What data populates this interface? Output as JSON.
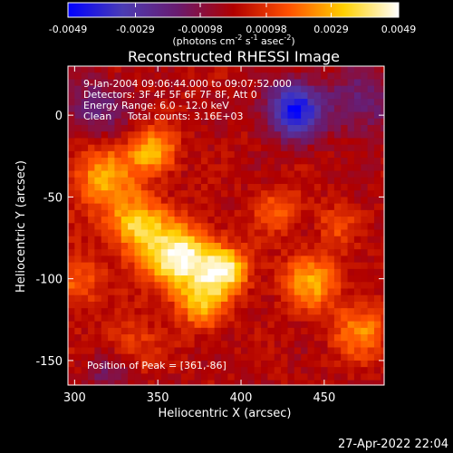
{
  "colorbar": {
    "ticks": [
      "-0.0049",
      "-0.0029",
      "-0.00098",
      "0.00098",
      "0.0029",
      "0.0049"
    ],
    "tick_values": [
      -0.0049,
      -0.0029,
      -0.00098,
      0.00098,
      0.0029,
      0.0049
    ],
    "range": [
      -0.0049,
      0.0049
    ],
    "unit": "(photons cm",
    "unit_sup1": "-2",
    "unit_mid": " s",
    "unit_sup2": "-1",
    "unit_tail": " asec",
    "unit_sup3": "-2",
    "unit_end": ")",
    "colors": [
      "#0000ff",
      "#4b3cb4",
      "#6a1b6e",
      "#b00000",
      "#ff5000",
      "#ffd000",
      "#ffffff"
    ]
  },
  "title": "Reconstructed RHESSI Image",
  "info": {
    "line1": "9-Jan-2004 09:06:44.000 to 09:07:52.000",
    "line2": "Detectors: 3F 4F 5F 6F 7F 8F, Att 0",
    "line3": "Energy Range: 6.0 - 12.0 keV",
    "line4": "Clean     Total counts: 3.16E+03"
  },
  "peak": "Position of Peak = [361,-86]",
  "axes": {
    "xlabel": "Heliocentric X (arcsec)",
    "ylabel": "Heliocentric Y (arcsec)",
    "xticks": [
      "300",
      "350",
      "400",
      "450"
    ],
    "xtick_values": [
      300,
      350,
      400,
      450
    ],
    "yticks": [
      "0",
      "-50",
      "-100",
      "-150"
    ],
    "ytick_values": [
      0,
      -50,
      -100,
      -150
    ],
    "xrange": [
      296,
      486
    ],
    "yrange": [
      -165,
      30
    ]
  },
  "image_sources": [
    {
      "x": 361,
      "y": -86,
      "amp": 1.0,
      "s": 14
    },
    {
      "x": 388,
      "y": -93,
      "amp": 0.85,
      "s": 10
    },
    {
      "x": 335,
      "y": -65,
      "amp": 0.7,
      "s": 12
    },
    {
      "x": 315,
      "y": -35,
      "amp": 0.55,
      "s": 14
    },
    {
      "x": 345,
      "y": -20,
      "amp": 0.6,
      "s": 10
    },
    {
      "x": 375,
      "y": -115,
      "amp": 0.55,
      "s": 10
    },
    {
      "x": 440,
      "y": -100,
      "amp": 0.55,
      "s": 12
    },
    {
      "x": 470,
      "y": -130,
      "amp": 0.45,
      "s": 12
    },
    {
      "x": 420,
      "y": -55,
      "amp": 0.35,
      "s": 10
    },
    {
      "x": 330,
      "y": -140,
      "amp": 0.3,
      "s": 12
    },
    {
      "x": 455,
      "y": -65,
      "amp": 0.3,
      "s": 8
    },
    {
      "x": 300,
      "y": -100,
      "amp": 0.4,
      "s": 10
    },
    {
      "x": 430,
      "y": 5,
      "amp": -0.9,
      "s": 12
    },
    {
      "x": 310,
      "y": 5,
      "amp": -0.35,
      "s": 14
    },
    {
      "x": 470,
      "y": 10,
      "amp": -0.4,
      "s": 14
    },
    {
      "x": 320,
      "y": -155,
      "amp": -0.35,
      "s": 10
    }
  ],
  "timestamp": "27-Apr-2022 22:04"
}
